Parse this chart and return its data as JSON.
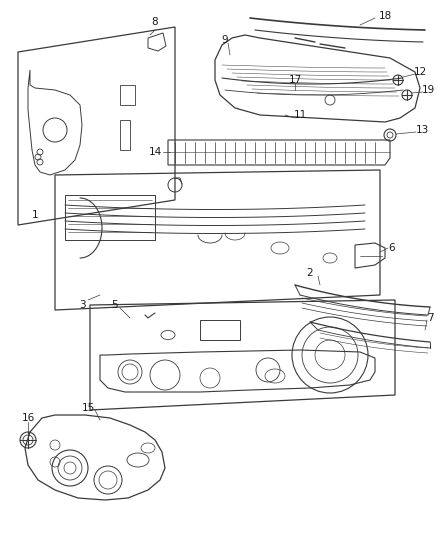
{
  "background_color": "#ffffff",
  "line_color": "#3a3a3a",
  "text_color": "#1a1a1a",
  "figsize": [
    4.39,
    5.33
  ],
  "dpi": 100
}
